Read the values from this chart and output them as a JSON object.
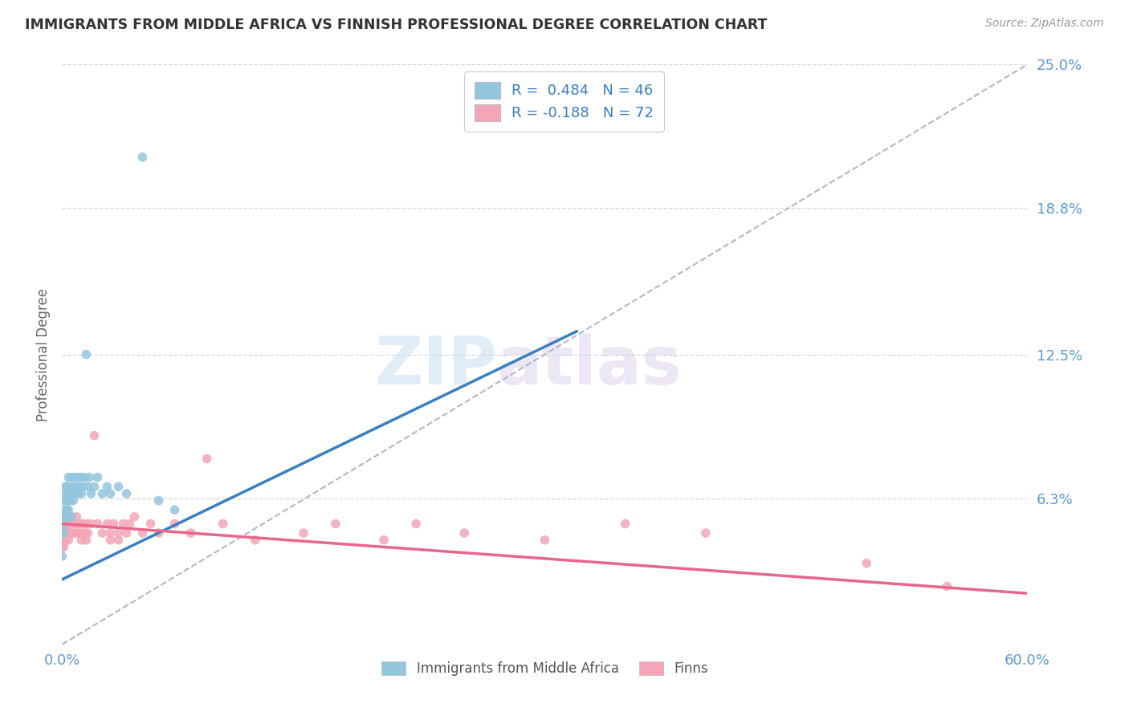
{
  "title": "IMMIGRANTS FROM MIDDLE AFRICA VS FINNISH PROFESSIONAL DEGREE CORRELATION CHART",
  "source": "Source: ZipAtlas.com",
  "ylabel": "Professional Degree",
  "yticks": [
    0.0,
    0.063,
    0.125,
    0.188,
    0.25
  ],
  "ytick_labels": [
    "",
    "6.3%",
    "12.5%",
    "18.8%",
    "25.0%"
  ],
  "xlim": [
    0.0,
    0.6
  ],
  "ylim": [
    0.0,
    0.25
  ],
  "watermark_zip": "ZIP",
  "watermark_atlas": "atlas",
  "legend_r1": "R =  0.484",
  "legend_n1": "N = 46",
  "legend_r2": "R = -0.188",
  "legend_n2": "N = 72",
  "blue_color": "#92c5de",
  "pink_color": "#f4a6b8",
  "blue_line_color": "#3a7fc1",
  "pink_line_color": "#e8668a",
  "gray_dash_color": "#b0b8c8",
  "title_color": "#333333",
  "axis_label_color": "#5b9bd5",
  "blue_trend_x": [
    0.0,
    0.32
  ],
  "blue_trend_y": [
    0.028,
    0.135
  ],
  "pink_trend_x": [
    0.0,
    0.6
  ],
  "pink_trend_y": [
    0.052,
    0.022
  ],
  "blue_scatter": [
    [
      0.0,
      0.038
    ],
    [
      0.001,
      0.048
    ],
    [
      0.001,
      0.055
    ],
    [
      0.001,
      0.062
    ],
    [
      0.001,
      0.052
    ],
    [
      0.002,
      0.058
    ],
    [
      0.002,
      0.065
    ],
    [
      0.002,
      0.055
    ],
    [
      0.002,
      0.068
    ],
    [
      0.003,
      0.062
    ],
    [
      0.003,
      0.058
    ],
    [
      0.003,
      0.068
    ],
    [
      0.004,
      0.065
    ],
    [
      0.004,
      0.072
    ],
    [
      0.004,
      0.058
    ],
    [
      0.005,
      0.068
    ],
    [
      0.005,
      0.062
    ],
    [
      0.006,
      0.072
    ],
    [
      0.006,
      0.065
    ],
    [
      0.006,
      0.055
    ],
    [
      0.007,
      0.068
    ],
    [
      0.007,
      0.062
    ],
    [
      0.008,
      0.065
    ],
    [
      0.008,
      0.072
    ],
    [
      0.009,
      0.068
    ],
    [
      0.01,
      0.065
    ],
    [
      0.01,
      0.072
    ],
    [
      0.011,
      0.068
    ],
    [
      0.012,
      0.072
    ],
    [
      0.012,
      0.065
    ],
    [
      0.013,
      0.068
    ],
    [
      0.014,
      0.072
    ],
    [
      0.015,
      0.125
    ],
    [
      0.016,
      0.068
    ],
    [
      0.017,
      0.072
    ],
    [
      0.018,
      0.065
    ],
    [
      0.02,
      0.068
    ],
    [
      0.022,
      0.072
    ],
    [
      0.025,
      0.065
    ],
    [
      0.028,
      0.068
    ],
    [
      0.03,
      0.065
    ],
    [
      0.035,
      0.068
    ],
    [
      0.04,
      0.065
    ],
    [
      0.05,
      0.21
    ],
    [
      0.06,
      0.062
    ],
    [
      0.07,
      0.058
    ]
  ],
  "pink_scatter": [
    [
      0.0,
      0.052
    ],
    [
      0.0,
      0.048
    ],
    [
      0.0,
      0.042
    ],
    [
      0.001,
      0.055
    ],
    [
      0.001,
      0.05
    ],
    [
      0.001,
      0.048
    ],
    [
      0.001,
      0.052
    ],
    [
      0.001,
      0.045
    ],
    [
      0.001,
      0.042
    ],
    [
      0.002,
      0.052
    ],
    [
      0.002,
      0.048
    ],
    [
      0.002,
      0.055
    ],
    [
      0.002,
      0.045
    ],
    [
      0.003,
      0.052
    ],
    [
      0.003,
      0.048
    ],
    [
      0.003,
      0.055
    ],
    [
      0.004,
      0.052
    ],
    [
      0.004,
      0.048
    ],
    [
      0.004,
      0.055
    ],
    [
      0.004,
      0.045
    ],
    [
      0.005,
      0.052
    ],
    [
      0.005,
      0.048
    ],
    [
      0.005,
      0.055
    ],
    [
      0.006,
      0.052
    ],
    [
      0.006,
      0.048
    ],
    [
      0.007,
      0.052
    ],
    [
      0.007,
      0.048
    ],
    [
      0.008,
      0.052
    ],
    [
      0.008,
      0.048
    ],
    [
      0.009,
      0.055
    ],
    [
      0.01,
      0.052
    ],
    [
      0.01,
      0.048
    ],
    [
      0.011,
      0.052
    ],
    [
      0.012,
      0.048
    ],
    [
      0.012,
      0.045
    ],
    [
      0.013,
      0.052
    ],
    [
      0.014,
      0.048
    ],
    [
      0.015,
      0.052
    ],
    [
      0.015,
      0.045
    ],
    [
      0.016,
      0.048
    ],
    [
      0.018,
      0.052
    ],
    [
      0.02,
      0.09
    ],
    [
      0.022,
      0.052
    ],
    [
      0.025,
      0.048
    ],
    [
      0.028,
      0.052
    ],
    [
      0.03,
      0.048
    ],
    [
      0.03,
      0.045
    ],
    [
      0.032,
      0.052
    ],
    [
      0.035,
      0.048
    ],
    [
      0.035,
      0.045
    ],
    [
      0.038,
      0.052
    ],
    [
      0.04,
      0.048
    ],
    [
      0.042,
      0.052
    ],
    [
      0.045,
      0.055
    ],
    [
      0.05,
      0.048
    ],
    [
      0.055,
      0.052
    ],
    [
      0.06,
      0.048
    ],
    [
      0.07,
      0.052
    ],
    [
      0.08,
      0.048
    ],
    [
      0.09,
      0.08
    ],
    [
      0.1,
      0.052
    ],
    [
      0.12,
      0.045
    ],
    [
      0.15,
      0.048
    ],
    [
      0.17,
      0.052
    ],
    [
      0.2,
      0.045
    ],
    [
      0.22,
      0.052
    ],
    [
      0.25,
      0.048
    ],
    [
      0.3,
      0.045
    ],
    [
      0.35,
      0.052
    ],
    [
      0.4,
      0.048
    ],
    [
      0.5,
      0.035
    ],
    [
      0.55,
      0.025
    ]
  ]
}
